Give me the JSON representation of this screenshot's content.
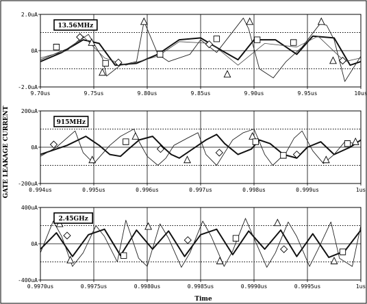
{
  "figure": {
    "ylabel": "GATE LEAKAGE CURRENT",
    "xlabel": "Time"
  },
  "chart_data": [
    {
      "type": "line",
      "annotation": "13.56MHz",
      "x_unit": "us",
      "xlim": [
        9.7,
        10.0
      ],
      "ylim": [
        -2.0,
        2.0
      ],
      "y_unit": "uA",
      "x_ticks": [
        "9.70us",
        "9.75us",
        "9.80us",
        "9.85us",
        "9.90us",
        "9.95us",
        "10us"
      ],
      "y_ticks": [
        {
          "value": 2.0,
          "label": "2.0uA"
        },
        {
          "value": 0,
          "label": "0A"
        },
        {
          "value": -2.0,
          "label": "-2.0uA"
        }
      ],
      "dashed_levels": [
        1.0,
        -1.0
      ],
      "series": [
        {
          "marker": "square",
          "style": "thick",
          "x": [
            9.7,
            9.72,
            9.74,
            9.755,
            9.77,
            9.79,
            9.81,
            9.83,
            9.85,
            9.87,
            9.885,
            9.9,
            9.92,
            9.94,
            9.955,
            9.975,
            9.99,
            10.0
          ],
          "y": [
            -0.6,
            -0.1,
            0.6,
            0.4,
            -0.8,
            -0.7,
            -0.2,
            0.6,
            0.7,
            0.0,
            -0.5,
            0.6,
            0.6,
            -0.2,
            0.8,
            0.7,
            -0.8,
            -0.6
          ]
        },
        {
          "marker": "triangle",
          "style": "spiky",
          "x": [
            9.7,
            9.725,
            9.745,
            9.758,
            9.762,
            9.775,
            9.79,
            9.797,
            9.8,
            9.81,
            9.82,
            9.84,
            9.85,
            9.865,
            9.89,
            9.895,
            9.905,
            9.918,
            9.93,
            9.945,
            9.962,
            9.968,
            9.975,
            9.985,
            10.0
          ],
          "y": [
            -0.5,
            0.1,
            0.9,
            -0.4,
            -1.4,
            -0.8,
            -0.6,
            1.6,
            1.2,
            -0.2,
            -0.6,
            -0.2,
            0.6,
            -0.1,
            1.8,
            1.2,
            -1.0,
            -1.5,
            -0.6,
            0.2,
            1.5,
            1.4,
            0.6,
            -1.7,
            -0.3
          ]
        },
        {
          "marker": "diamond",
          "style": "thin",
          "x": [
            9.7,
            9.725,
            9.74,
            9.76,
            9.78,
            9.81,
            9.83,
            9.86,
            9.885,
            9.91,
            9.94,
            9.96,
            9.985,
            10.0
          ],
          "y": [
            -0.4,
            0.0,
            0.8,
            -0.4,
            -0.8,
            -0.3,
            0.5,
            0.4,
            -0.8,
            0.4,
            0.2,
            0.8,
            -0.6,
            -0.4
          ]
        }
      ],
      "markers": [
        {
          "shape": "square",
          "x": 9.715,
          "y": 0.2
        },
        {
          "shape": "diamond",
          "x": 9.737,
          "y": 0.75
        },
        {
          "shape": "triangle",
          "x": 9.748,
          "y": 0.45
        },
        {
          "shape": "triangle",
          "x": 9.758,
          "y": -1.2
        },
        {
          "shape": "square",
          "x": 9.761,
          "y": -0.7
        },
        {
          "shape": "diamond",
          "x": 9.773,
          "y": -0.65
        },
        {
          "shape": "triangle",
          "x": 9.797,
          "y": 1.6
        },
        {
          "shape": "square",
          "x": 9.812,
          "y": -0.2
        },
        {
          "shape": "diamond",
          "x": 9.858,
          "y": 0.35
        },
        {
          "shape": "triangle",
          "x": 9.875,
          "y": -1.3
        },
        {
          "shape": "square",
          "x": 9.865,
          "y": 0.65
        },
        {
          "shape": "square",
          "x": 9.903,
          "y": 0.6
        },
        {
          "shape": "triangle",
          "x": 9.896,
          "y": 1.6
        },
        {
          "shape": "square",
          "x": 9.937,
          "y": 0.45
        },
        {
          "shape": "triangle",
          "x": 9.963,
          "y": 1.6
        },
        {
          "shape": "triangle",
          "x": 9.974,
          "y": -0.55
        },
        {
          "shape": "diamond",
          "x": 9.983,
          "y": -0.55
        }
      ]
    },
    {
      "type": "line",
      "annotation": "915MHz",
      "x_unit": "us",
      "xlim": [
        0.994,
        1.0
      ],
      "ylim": [
        -200,
        200
      ],
      "y_unit": "uA",
      "x_ticks": [
        "0.994us",
        "0.995us",
        "0.996us",
        "0.997us",
        "0.998us",
        "0.999us",
        "1us"
      ],
      "y_ticks": [
        {
          "value": 200,
          "label": "200uA"
        },
        {
          "value": 0,
          "label": "0A"
        },
        {
          "value": -200,
          "label": "-200uA"
        }
      ],
      "dashed_levels": [
        100,
        -100
      ],
      "series": [
        {
          "marker": "square",
          "style": "thick",
          "x": [
            0.994,
            0.9945,
            0.99485,
            0.9951,
            0.9953,
            0.9955,
            0.99565,
            0.99585,
            0.9961,
            0.9963,
            0.99645,
            0.9966,
            0.99685,
            0.9971,
            0.9973,
            0.99745,
            0.9977,
            0.99795,
            0.9981,
            0.9983,
            0.99855,
            0.9988,
            0.999,
            0.99925,
            0.9995,
            0.9998,
            1.0
          ],
          "y": [
            -40,
            10,
            60,
            10,
            -40,
            -50,
            -10,
            40,
            60,
            0,
            -40,
            -60,
            -10,
            40,
            70,
            20,
            -40,
            -10,
            40,
            20,
            -40,
            -60,
            0,
            30,
            -40,
            0,
            40
          ]
        },
        {
          "marker": "triangle",
          "style": "spiky",
          "x": [
            0.994,
            0.9943,
            0.99465,
            0.9948,
            0.995,
            0.99515,
            0.9953,
            0.9955,
            0.99575,
            0.99585,
            0.996,
            0.9962,
            0.99635,
            0.9965,
            0.99675,
            0.99695,
            0.9971,
            0.9973,
            0.99745,
            0.9976,
            0.9978,
            0.998,
            0.9982,
            0.99835,
            0.9986,
            0.99875,
            0.9989,
            0.9991,
            0.9993,
            0.9995,
            0.9997,
            0.9999,
            1.0
          ],
          "y": [
            -50,
            0,
            90,
            -30,
            -90,
            -40,
            10,
            60,
            100,
            30,
            -50,
            -100,
            -60,
            10,
            50,
            80,
            -40,
            -100,
            -30,
            40,
            80,
            100,
            -40,
            -100,
            -30,
            50,
            90,
            -20,
            -90,
            -40,
            30,
            20,
            40
          ]
        }
      ],
      "markers": [
        {
          "shape": "diamond",
          "x": 0.99425,
          "y": 15
        },
        {
          "shape": "triangle",
          "x": 0.99497,
          "y": -70
        },
        {
          "shape": "square",
          "x": 0.9956,
          "y": 30
        },
        {
          "shape": "triangle",
          "x": 0.99578,
          "y": 60
        },
        {
          "shape": "diamond",
          "x": 0.99625,
          "y": -10
        },
        {
          "shape": "triangle",
          "x": 0.99675,
          "y": -70
        },
        {
          "shape": "diamond",
          "x": 0.99735,
          "y": -30
        },
        {
          "shape": "triangle",
          "x": 0.99797,
          "y": 60
        },
        {
          "shape": "square",
          "x": 0.99803,
          "y": 30
        },
        {
          "shape": "square",
          "x": 0.99855,
          "y": -45
        },
        {
          "shape": "diamond",
          "x": 0.9988,
          "y": -40
        },
        {
          "shape": "triangle",
          "x": 0.99935,
          "y": -70
        },
        {
          "shape": "square",
          "x": 0.99975,
          "y": 20
        },
        {
          "shape": "triangle",
          "x": 0.9999,
          "y": 30
        }
      ]
    },
    {
      "type": "line",
      "annotation": "2.45GHz",
      "x_unit": "us",
      "xlim": [
        0.997,
        1.0
      ],
      "ylim": [
        -400,
        400
      ],
      "y_unit": "uA",
      "x_ticks": [
        "0.9970us",
        "0.9975us",
        "0.9980us",
        "0.9985us",
        "0.9990us",
        "0.9995us",
        "1us"
      ],
      "y_ticks": [
        {
          "value": 400,
          "label": "400uA"
        },
        {
          "value": 0,
          "label": "0A"
        },
        {
          "value": -400,
          "label": "-400uA"
        }
      ],
      "dashed_levels": [
        200,
        -200
      ],
      "series": [
        {
          "marker": "square",
          "style": "thick",
          "x": [
            0.997,
            0.99715,
            0.9973,
            0.99745,
            0.9976,
            0.99775,
            0.9979,
            0.99805,
            0.9982,
            0.99835,
            0.9985,
            0.99865,
            0.9988,
            0.99895,
            0.9991,
            0.99925,
            0.9994,
            0.99955,
            0.9997,
            0.99985,
            1.0
          ],
          "y": [
            -60,
            120,
            -140,
            100,
            160,
            -130,
            150,
            -60,
            140,
            -140,
            100,
            160,
            -120,
            140,
            -60,
            150,
            -140,
            110,
            -150,
            -80,
            150
          ]
        },
        {
          "marker": "triangle",
          "style": "spiky",
          "x": [
            0.997,
            0.99712,
            0.9972,
            0.9973,
            0.9974,
            0.99752,
            0.9976,
            0.99772,
            0.9978,
            0.99792,
            0.998,
            0.99812,
            0.9982,
            0.99832,
            0.9984,
            0.99852,
            0.9986,
            0.99872,
            0.9988,
            0.99892,
            0.999,
            0.99912,
            0.9992,
            0.99932,
            0.9994,
            0.99952,
            0.9996,
            0.99972,
            0.9998,
            0.99992,
            1.0
          ],
          "y": [
            -100,
            250,
            80,
            -250,
            -100,
            200,
            80,
            -200,
            260,
            -160,
            -250,
            220,
            60,
            -260,
            -100,
            250,
            80,
            -250,
            -80,
            280,
            60,
            -260,
            -100,
            240,
            80,
            -250,
            -60,
            240,
            -160,
            -250,
            200
          ]
        }
      ],
      "markers": [
        {
          "shape": "triangle",
          "x": 0.99718,
          "y": 220
        },
        {
          "shape": "diamond",
          "x": 0.99725,
          "y": 90
        },
        {
          "shape": "triangle",
          "x": 0.99728,
          "y": -180
        },
        {
          "shape": "square",
          "x": 0.99778,
          "y": -130
        },
        {
          "shape": "triangle",
          "x": 0.99801,
          "y": 190
        },
        {
          "shape": "diamond",
          "x": 0.99838,
          "y": 40
        },
        {
          "shape": "triangle",
          "x": 0.99868,
          "y": -190
        },
        {
          "shape": "square",
          "x": 0.99883,
          "y": 60
        },
        {
          "shape": "triangle",
          "x": 0.99922,
          "y": 230
        },
        {
          "shape": "diamond",
          "x": 0.99928,
          "y": -60
        },
        {
          "shape": "triangle",
          "x": 0.99975,
          "y": -190
        },
        {
          "shape": "square",
          "x": 0.99983,
          "y": -90
        }
      ]
    }
  ]
}
